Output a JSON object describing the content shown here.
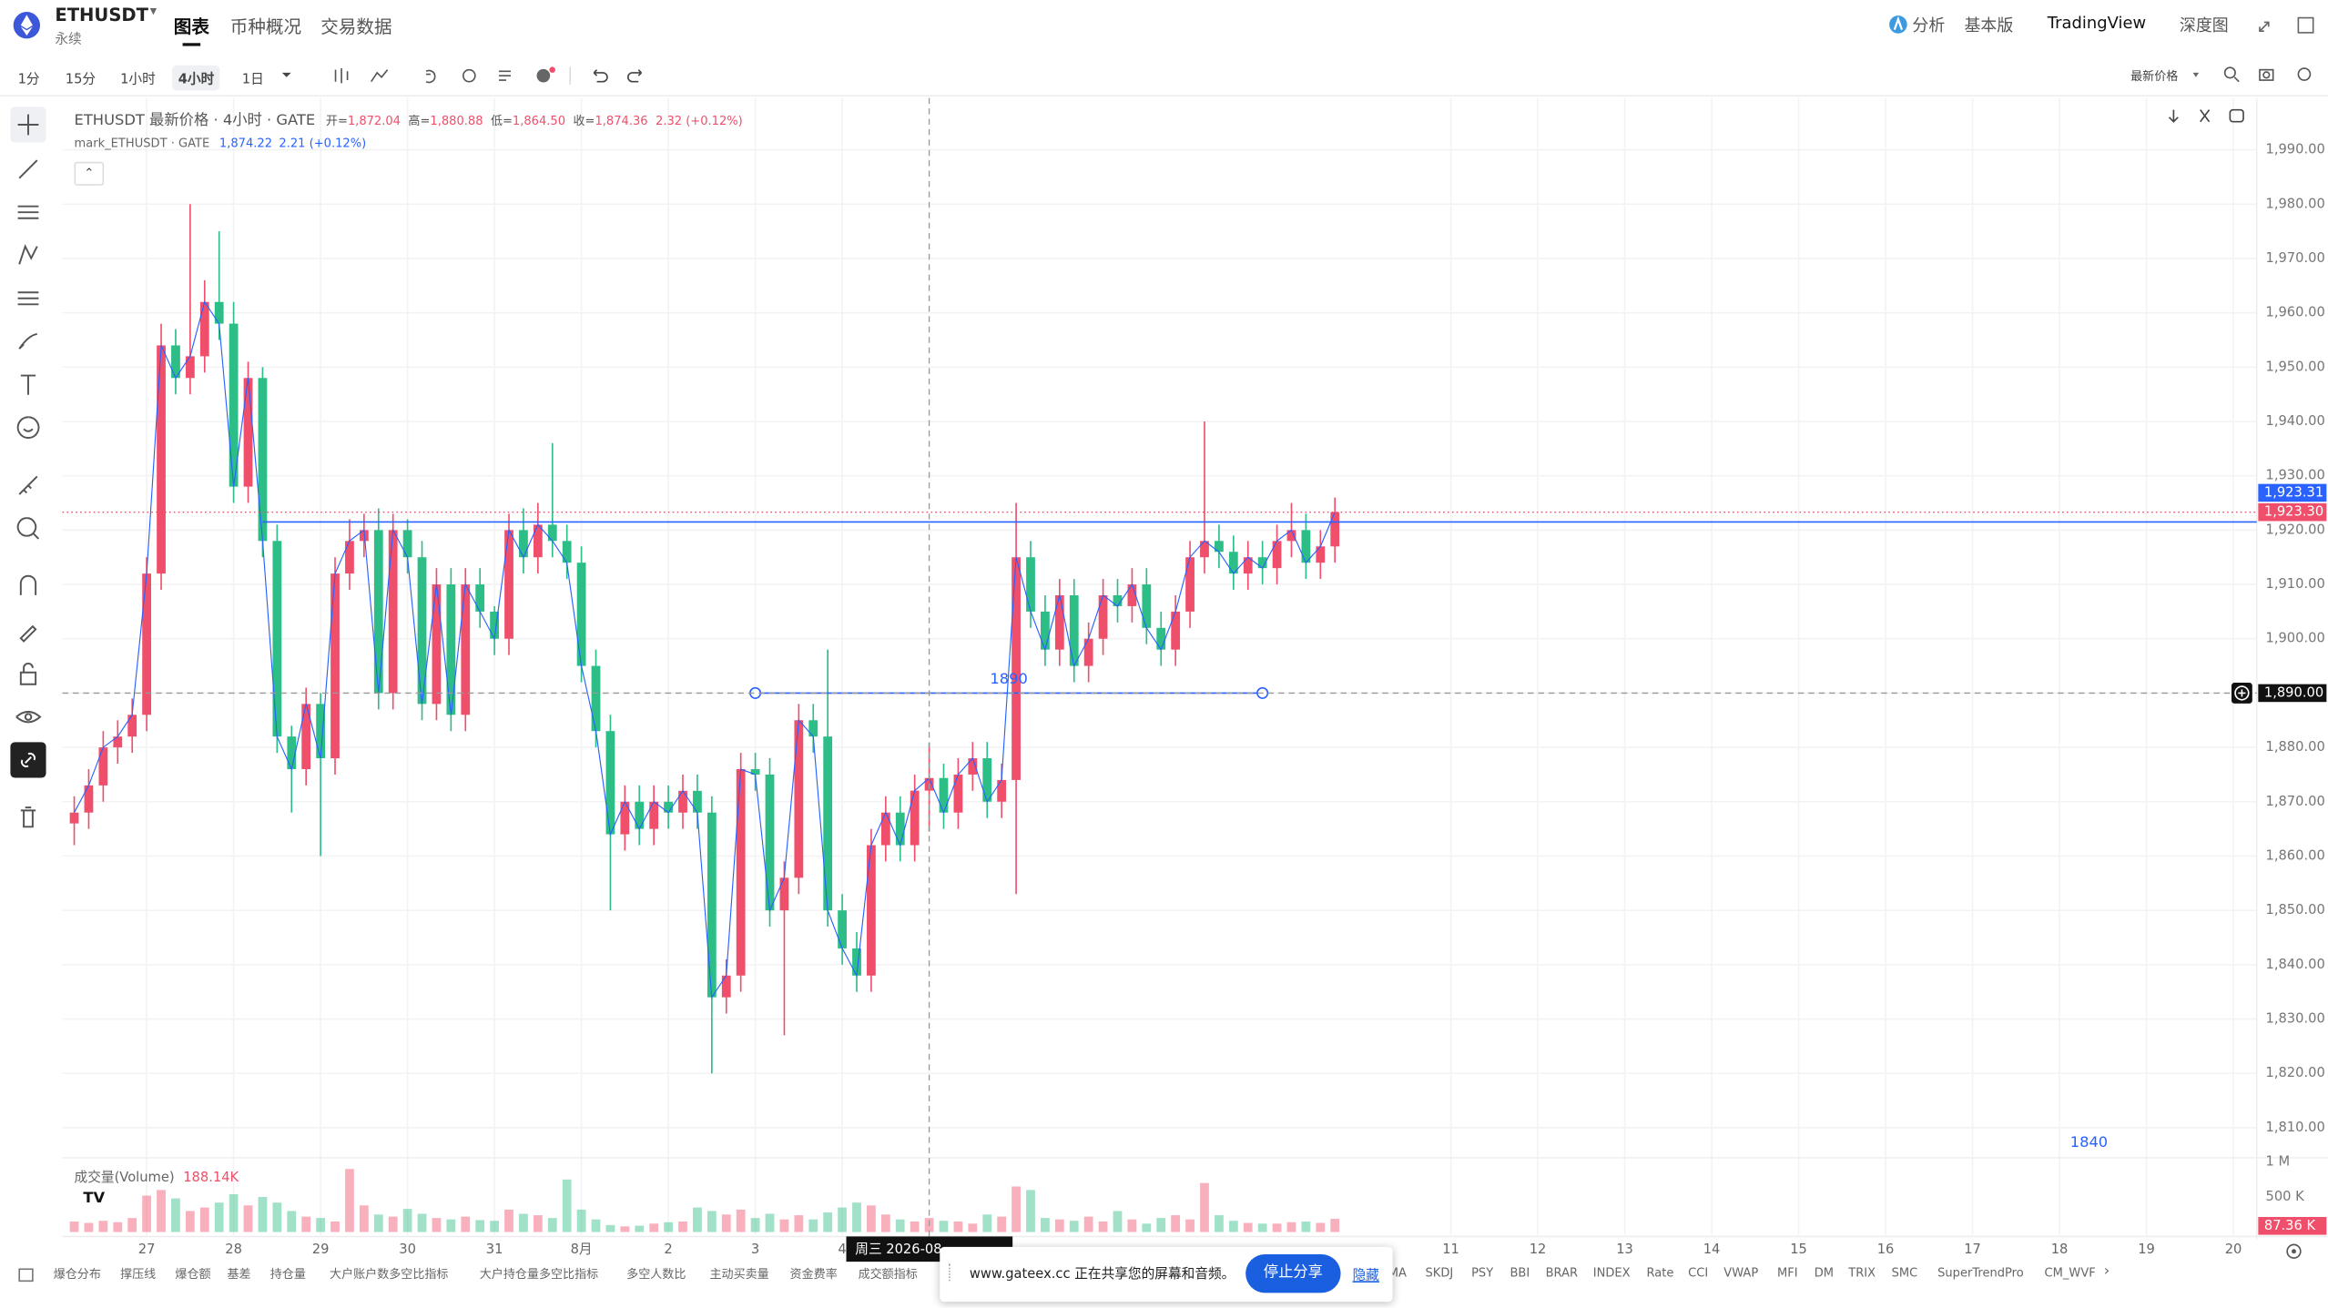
{
  "header": {
    "symbol": "ETHUSDT",
    "contract": "永续",
    "tabs": [
      "图表",
      "币种概况",
      "交易数据"
    ],
    "links": [
      "分析",
      "基本版",
      "TradingView",
      "深度图"
    ]
  },
  "toolbar": {
    "intervals": [
      "1分",
      "15分",
      "1小时",
      "4小时",
      "1日"
    ],
    "price_source": "最新价格"
  },
  "legend": {
    "title": "ETHUSDT 最新价格 · 4小时 · GATE",
    "open_label": "开=",
    "open": "1,872.04",
    "high_label": "高=",
    "high": "1,880.88",
    "low_label": "低=",
    "low": "1,864.50",
    "close_label": "收=",
    "close": "1,874.36",
    "change": "2.32 (+0.12%)",
    "mark_title": "mark_ETHUSDT · GATE",
    "mark_price": "1,874.22",
    "mark_change": "2.21 (+0.12%)"
  },
  "chart_data": {
    "type": "candlestick",
    "categories": [
      null,
      null,
      null,
      null,
      null,
      "27",
      null,
      null,
      null,
      null,
      null,
      "28",
      null,
      null,
      null,
      null,
      null,
      "29",
      null,
      null,
      null,
      null,
      null,
      "30",
      null,
      null,
      null,
      null,
      null,
      "31",
      null,
      null,
      null,
      null,
      null,
      "8月",
      null,
      null,
      null,
      null,
      null,
      "2",
      null,
      null,
      null,
      null,
      null,
      "3",
      null,
      null,
      null,
      null,
      null,
      "4",
      null,
      null,
      null,
      null,
      null,
      null,
      null,
      null,
      null,
      null,
      null,
      null,
      null,
      null,
      null,
      null,
      null,
      null,
      null,
      null,
      null,
      null,
      null,
      null,
      null,
      null,
      null,
      null,
      null,
      null,
      null,
      null,
      null,
      null,
      null,
      null,
      null,
      null,
      null,
      null,
      null,
      "11",
      null,
      null,
      null,
      null,
      null,
      "12",
      null,
      null,
      null,
      null,
      null,
      "13",
      null,
      null,
      null,
      null,
      null,
      "14",
      null,
      null,
      null,
      null,
      null,
      "15",
      null,
      null,
      null,
      null,
      null,
      "16",
      null,
      null,
      null,
      null,
      null,
      "17",
      null,
      null,
      null,
      null,
      null,
      "18",
      null,
      null,
      null,
      null,
      null,
      "19",
      null,
      null,
      null,
      null,
      null,
      "20"
    ],
    "open": [
      1866,
      1868,
      1873,
      1880,
      1882,
      1886,
      1912,
      1954,
      1948,
      1952,
      1962,
      1958,
      1928,
      1948,
      1918,
      1882,
      1876,
      1888,
      1878,
      1912,
      1918,
      1920,
      1890,
      1920,
      1915,
      1888,
      1910,
      1886,
      1910,
      1905,
      1900,
      1920,
      1915,
      1921,
      1918,
      1914,
      1895,
      1883,
      1864,
      1870,
      1865,
      1870,
      1868,
      1872,
      1868,
      1834,
      1838,
      1876,
      1875,
      1850,
      1856,
      1885,
      1882,
      1850,
      1843,
      1838,
      1862,
      1868,
      1862,
      1872.04,
      1874.36,
      1868,
      1875,
      1878,
      1870,
      1874,
      1915,
      1905,
      1898,
      1908,
      1895,
      1900,
      1908,
      1906,
      1910,
      1902,
      1898,
      1905,
      1915,
      1918,
      1916,
      1912,
      1915,
      1913,
      1918,
      1920,
      1914,
      1917,
      null,
      null,
      null,
      null,
      null,
      null,
      null,
      null,
      null,
      null,
      null,
      null,
      null,
      null,
      null,
      null,
      null,
      null,
      null,
      null,
      null,
      null,
      null,
      null,
      null,
      null,
      null,
      null,
      null,
      null,
      null,
      null,
      null,
      null,
      null,
      null,
      null,
      null,
      null,
      null,
      null,
      null,
      null,
      null,
      null,
      null,
      null,
      null,
      null,
      null,
      null,
      null,
      null,
      null,
      null,
      null,
      null,
      null,
      null,
      null,
      null,
      null
    ],
    "high": [
      1871,
      1876,
      1883,
      1885,
      1889,
      1915,
      1958,
      1957,
      1980,
      1966,
      1975,
      1962,
      1951,
      1950,
      1921,
      1884,
      1891,
      1890,
      1915,
      1922,
      1923,
      1924,
      1923,
      1922,
      1918,
      1913,
      1913,
      1913,
      1913,
      1906,
      1923,
      1924,
      1925,
      1936,
      1921,
      1917,
      1898,
      1886,
      1873,
      1873,
      1873,
      1873,
      1875,
      1875,
      1871,
      1841,
      1879,
      1879,
      1878,
      1859,
      1888,
      1888,
      1898,
      1853,
      1846,
      1865,
      1871,
      1871,
      1875,
      1880.88,
      1877,
      1878,
      1881,
      1881,
      1877,
      1925,
      1918,
      1908,
      1911,
      1911,
      1903,
      1911,
      1911,
      1913,
      1913,
      1905,
      1908,
      1918,
      1940,
      1921,
      1919,
      1918,
      1918,
      1921,
      1925,
      1923,
      1920,
      1926,
      null,
      null,
      null,
      null,
      null,
      null,
      null,
      null,
      null,
      null,
      null,
      null,
      null,
      null,
      null,
      null,
      null,
      null,
      null,
      null,
      null,
      null,
      null,
      null,
      null,
      null,
      null,
      null,
      null,
      null,
      null,
      null,
      null,
      null,
      null,
      null,
      null,
      null,
      null,
      null,
      null,
      null,
      null,
      null,
      null,
      null,
      null,
      null,
      null,
      null,
      null,
      null,
      null,
      null,
      null,
      null,
      null,
      null,
      null,
      null,
      null,
      null
    ],
    "low": [
      1862,
      1865,
      1870,
      1877,
      1879,
      1883,
      1909,
      1945,
      1945,
      1949,
      1955,
      1925,
      1925,
      1915,
      1879,
      1868,
      1873,
      1860,
      1875,
      1909,
      1915,
      1887,
      1887,
      1912,
      1885,
      1885,
      1883,
      1883,
      1902,
      1897,
      1897,
      1912,
      1912,
      1915,
      1911,
      1892,
      1880,
      1850,
      1861,
      1862,
      1862,
      1865,
      1865,
      1865,
      1820,
      1831,
      1835,
      1872,
      1847,
      1827,
      1853,
      1879,
      1847,
      1840,
      1835,
      1835,
      1859,
      1859,
      1859,
      1864.5,
      1865,
      1865,
      1872,
      1867,
      1867,
      1853,
      1902,
      1895,
      1895,
      1892,
      1892,
      1897,
      1903,
      1903,
      1899,
      1895,
      1895,
      1902,
      1912,
      1913,
      1909,
      1909,
      1910,
      1910,
      1915,
      1911,
      1911,
      1914,
      null,
      null,
      null,
      null,
      null,
      null,
      null,
      null,
      null,
      null,
      null,
      null,
      null,
      null,
      null,
      null,
      null,
      null,
      null,
      null,
      null,
      null,
      null,
      null,
      null,
      null,
      null,
      null,
      null,
      null,
      null,
      null,
      null,
      null,
      null,
      null,
      null,
      null,
      null,
      null,
      null,
      null,
      null,
      null,
      null,
      null,
      null,
      null,
      null,
      null,
      null,
      null,
      null,
      null,
      null,
      null,
      null,
      null,
      null,
      null,
      null,
      null
    ],
    "close": [
      1868,
      1873,
      1880,
      1882,
      1886,
      1912,
      1954,
      1948,
      1952,
      1962,
      1958,
      1928,
      1948,
      1918,
      1882,
      1876,
      1888,
      1878,
      1912,
      1918,
      1920,
      1890,
      1920,
      1915,
      1888,
      1910,
      1886,
      1910,
      1905,
      1900,
      1920,
      1915,
      1921,
      1918,
      1914,
      1895,
      1883,
      1864,
      1870,
      1865,
      1870,
      1868,
      1872,
      1868,
      1834,
      1838,
      1876,
      1875,
      1850,
      1856,
      1885,
      1882,
      1850,
      1843,
      1838,
      1862,
      1868,
      1862,
      1872.04,
      1874.36,
      1868,
      1875,
      1878,
      1870,
      1874,
      1915,
      1905,
      1898,
      1908,
      1895,
      1900,
      1908,
      1906,
      1910,
      1902,
      1898,
      1905,
      1915,
      1918,
      1916,
      1912,
      1915,
      1913,
      1918,
      1920,
      1914,
      1917,
      1923.3,
      null,
      null,
      null,
      null,
      null,
      null,
      null,
      null,
      null,
      null,
      null,
      null,
      null,
      null,
      null,
      null,
      null,
      null,
      null,
      null,
      null,
      null,
      null,
      null,
      null,
      null,
      null,
      null,
      null,
      null,
      null,
      null,
      null,
      null,
      null,
      null,
      null,
      null,
      null,
      null,
      null,
      null,
      null,
      null,
      null,
      null,
      null,
      null,
      null,
      null,
      null,
      null,
      null,
      null,
      null,
      null,
      null,
      null,
      null,
      null,
      null,
      null
    ],
    "up_color": "#ef4f6b",
    "down_color": "#2dbd86",
    "line_color": "#2962ff",
    "ylim": [
      1805,
      1999
    ],
    "yticks": [
      {
        "value": 1810,
        "label": "1,810.00"
      },
      {
        "value": 1820,
        "label": "1,820.00"
      },
      {
        "value": 1830,
        "label": "1,830.00"
      },
      {
        "value": 1840,
        "label": "1,840.00"
      },
      {
        "value": 1850,
        "label": "1,850.00"
      },
      {
        "value": 1860,
        "label": "1,860.00"
      },
      {
        "value": 1870,
        "label": "1,870.00"
      },
      {
        "value": 1880,
        "label": "1,880.00"
      },
      {
        "value": 1890,
        "label": "1,890.00"
      },
      {
        "value": 1900,
        "label": "1,900.00"
      },
      {
        "value": 1910,
        "label": "1,910.00"
      },
      {
        "value": 1920,
        "label": "1,920.00"
      },
      {
        "value": 1930,
        "label": "1,930.00"
      },
      {
        "value": 1940,
        "label": "1,940.00"
      },
      {
        "value": 1950,
        "label": "1,950.00"
      },
      {
        "value": 1960,
        "label": "1,960.00"
      },
      {
        "value": 1970,
        "label": "1,970.00"
      },
      {
        "value": 1980,
        "label": "1,980.00"
      },
      {
        "value": 1990,
        "label": "1,990.00"
      }
    ],
    "grid": true,
    "volume": {
      "title": "成交量(Volume)",
      "value_label": "188.14K",
      "values": [
        150000,
        130000,
        160000,
        140000,
        200000,
        520000,
        600000,
        480000,
        300000,
        350000,
        420000,
        540000,
        380000,
        500000,
        420000,
        300000,
        220000,
        200000,
        150000,
        900000,
        380000,
        250000,
        220000,
        330000,
        260000,
        200000,
        180000,
        220000,
        170000,
        160000,
        320000,
        260000,
        240000,
        200000,
        750000,
        320000,
        180000,
        100000,
        80000,
        90000,
        120000,
        140000,
        150000,
        350000,
        300000,
        250000,
        320000,
        200000,
        260000,
        180000,
        240000,
        180000,
        280000,
        350000,
        420000,
        380000,
        250000,
        180000,
        150000,
        200000,
        160000,
        150000,
        120000,
        250000,
        220000,
        650000,
        600000,
        200000,
        180000,
        160000,
        220000,
        150000,
        300000,
        180000,
        120000,
        200000,
        240000,
        180000,
        700000,
        240000,
        160000,
        130000,
        120000,
        120000,
        140000,
        150000,
        130000,
        188140,
        null,
        null,
        null,
        null,
        null,
        null,
        null,
        null,
        null,
        null,
        null,
        null,
        null,
        null,
        null,
        null,
        null,
        null,
        null,
        null,
        null,
        null,
        null,
        null,
        null,
        null,
        null,
        null,
        null,
        null,
        null,
        null,
        null,
        null,
        null,
        null,
        null,
        null,
        null,
        null,
        null,
        null,
        null,
        null,
        null,
        null,
        null,
        null,
        null,
        null,
        null,
        null,
        null,
        null,
        null,
        null,
        null,
        null,
        null,
        null,
        null,
        null
      ],
      "ylim": [
        0,
        1060000
      ],
      "yticks": [
        {
          "value": 500000,
          "label": "500 K"
        },
        {
          "value": 1000000,
          "label": "1 M"
        }
      ],
      "last_label": {
        "value": 87360,
        "label": "87.36 K"
      }
    },
    "mark_price": {
      "value": 1923.31,
      "label": "1,923.31"
    },
    "last_price": {
      "value": 1923.3,
      "label": "1,923.30"
    },
    "crosshair": {
      "price": {
        "value": 1890,
        "label": "1,890.00"
      },
      "date_label": "周三 2026-08"
    },
    "drawings": {
      "ray": 1921.5,
      "segment": 1890,
      "text": "1840"
    }
  },
  "indicators": [
    "爆仓分布",
    "撑压线",
    "爆仓额",
    "基差",
    "持仓量",
    "大户账户数多空比指标",
    "大户持仓量多空比指标",
    "多空人数比",
    "主动买卖量",
    "资金费率",
    "成交额指标",
    "MA",
    "SKDJ",
    "PSY",
    "BBI",
    "BRAR",
    "INDEX",
    "Rate",
    "CCI",
    "VWAP",
    "MFI",
    "DM",
    "TRIX",
    "SMC",
    "SuperTrendPro",
    "CM_WVF"
  ],
  "share_popup": {
    "message": "www.gateex.cc 正在共享您的屏幕和音频。",
    "stop": "停止分享",
    "hide": "隐藏"
  }
}
